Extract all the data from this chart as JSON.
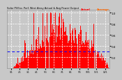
{
  "title": "Solar PV/Inv. Perf. West Array Actual & Avg Power Output",
  "bg_color": "#c8c8c8",
  "plot_bg_color": "#c8c8c8",
  "grid_color": "#ffffff",
  "bar_color": "#ff0000",
  "avg_line_color": "#0000ff",
  "title_color": "#000000",
  "tick_color": "#000000",
  "ylim": [
    0,
    1.0
  ],
  "num_points": 365,
  "avg_value": 0.3
}
